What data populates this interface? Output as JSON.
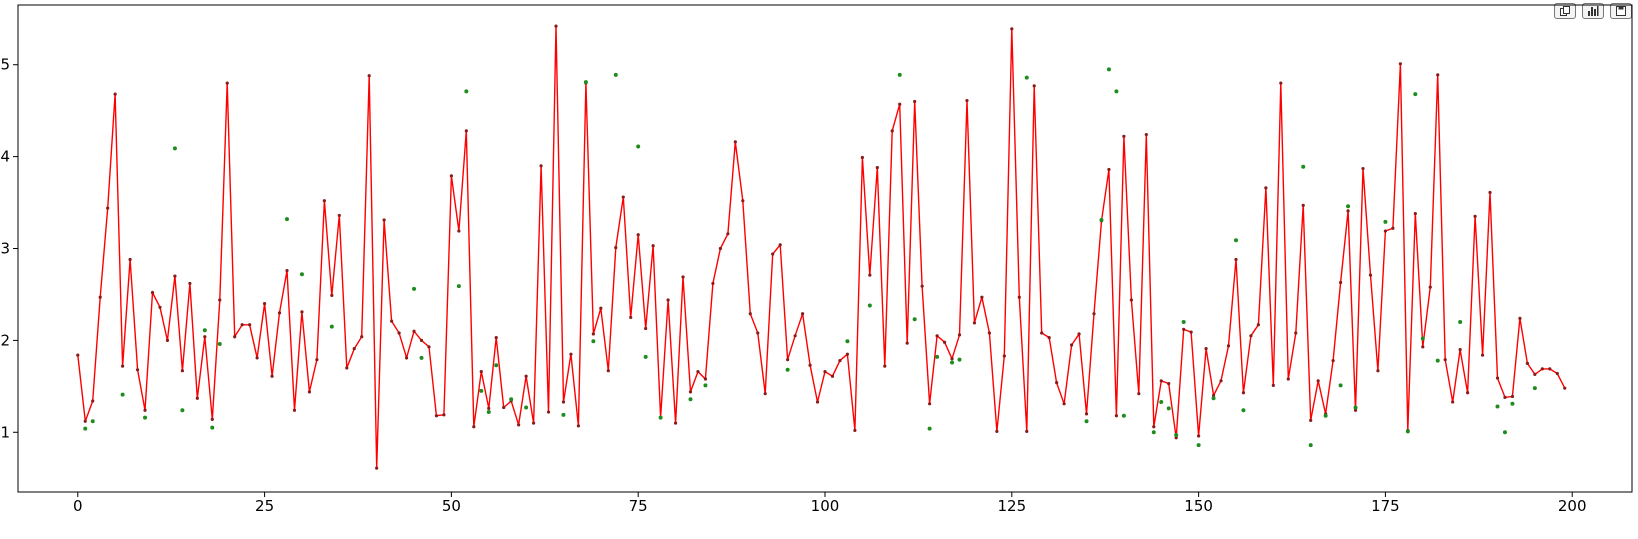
{
  "toolbar": {
    "buttons": [
      {
        "icon": "copy-icon"
      },
      {
        "icon": "bar-chart-icon"
      },
      {
        "icon": "save-icon"
      }
    ]
  },
  "chart_data": {
    "type": "line",
    "title": "",
    "xlabel": "",
    "ylabel": "",
    "xlim": [
      -8,
      208
    ],
    "ylim": [
      0.35,
      5.65
    ],
    "x_ticks": [
      0,
      25,
      50,
      75,
      100,
      125,
      150,
      175,
      200
    ],
    "y_ticks": [
      1,
      2,
      3,
      4,
      5
    ],
    "grid": false,
    "legend": "none",
    "line_color": "#ff0000",
    "line_marker_color": "#8b1a1a",
    "scatter_color": "#1e8c1e",
    "line_x": [
      0,
      1,
      2,
      3,
      4,
      5,
      6,
      7,
      8,
      9,
      10,
      11,
      12,
      13,
      14,
      15,
      16,
      17,
      18,
      19,
      20,
      21,
      22,
      23,
      24,
      25,
      26,
      27,
      28,
      29,
      30,
      31,
      32,
      33,
      34,
      35,
      36,
      37,
      38,
      39,
      40,
      41,
      42,
      43,
      44,
      45,
      46,
      47,
      48,
      49,
      50,
      51,
      52,
      53,
      54,
      55,
      56,
      57,
      58,
      59,
      60,
      61,
      62,
      63,
      64,
      65,
      66,
      67,
      68,
      69,
      70,
      71,
      72,
      73,
      74,
      75,
      76,
      77,
      78,
      79,
      80,
      81,
      82,
      83,
      84,
      85,
      86,
      87,
      88,
      89,
      90,
      91,
      92,
      93,
      94,
      95,
      96,
      97,
      98,
      99,
      100,
      101,
      102,
      103,
      104,
      105,
      106,
      107,
      108,
      109,
      110,
      111,
      112,
      113,
      114,
      115,
      116,
      117,
      118,
      119,
      120,
      121,
      122,
      123,
      124,
      125,
      126,
      127,
      128,
      129,
      130,
      131,
      132,
      133,
      134,
      135,
      136,
      137,
      138,
      139,
      140,
      141,
      142,
      143,
      144,
      145,
      146,
      147,
      148,
      149,
      150,
      151,
      152,
      153,
      154,
      155,
      156,
      157,
      158,
      159,
      160,
      161,
      162,
      163,
      164,
      165,
      166,
      167,
      168,
      169,
      170,
      171,
      172,
      173,
      174,
      175,
      176,
      177,
      178,
      179,
      180,
      181,
      182,
      183,
      184,
      185,
      186,
      187,
      188,
      189,
      190,
      191,
      192,
      193,
      194,
      195,
      196,
      197,
      198,
      199
    ],
    "line_y": [
      1.84,
      1.12,
      1.34,
      2.47,
      3.44,
      4.68,
      1.72,
      2.88,
      1.68,
      1.24,
      2.52,
      2.36,
      2.0,
      2.7,
      1.67,
      2.62,
      1.37,
      2.04,
      1.14,
      2.44,
      4.8,
      2.04,
      2.17,
      2.17,
      1.81,
      2.4,
      1.61,
      2.3,
      2.76,
      1.24,
      2.31,
      1.44,
      1.79,
      3.52,
      2.49,
      3.36,
      1.7,
      1.91,
      2.04,
      4.88,
      0.61,
      3.31,
      2.21,
      2.08,
      1.81,
      2.1,
      2.0,
      1.93,
      1.18,
      1.19,
      3.79,
      3.19,
      4.28,
      1.06,
      1.66,
      1.26,
      2.03,
      1.27,
      1.34,
      1.08,
      1.61,
      1.1,
      3.9,
      1.22,
      5.42,
      1.33,
      1.85,
      1.07,
      4.8,
      2.07,
      2.35,
      1.67,
      3.01,
      3.56,
      2.25,
      3.15,
      2.13,
      3.03,
      1.16,
      2.44,
      1.1,
      2.69,
      1.44,
      1.66,
      1.58,
      2.62,
      3.0,
      3.16,
      4.16,
      3.52,
      2.29,
      2.08,
      1.42,
      2.94,
      3.04,
      1.79,
      2.05,
      2.29,
      1.73,
      1.33,
      1.66,
      1.61,
      1.78,
      1.85,
      1.02,
      3.99,
      2.71,
      3.88,
      1.72,
      4.28,
      4.57,
      1.97,
      4.6,
      2.59,
      1.31,
      2.05,
      1.98,
      1.8,
      2.06,
      4.61,
      2.19,
      2.47,
      2.08,
      1.01,
      1.83,
      5.39,
      2.47,
      1.01,
      4.77,
      2.08,
      2.03,
      1.54,
      1.31,
      1.95,
      2.07,
      1.2,
      2.29,
      3.3,
      3.86,
      1.18,
      4.22,
      2.44,
      1.42,
      4.24,
      1.06,
      1.56,
      1.53,
      0.94,
      2.12,
      2.09,
      0.96,
      1.91,
      1.4,
      1.56,
      1.94,
      2.88,
      1.43,
      2.05,
      2.17,
      3.66,
      1.51,
      4.8,
      1.58,
      2.08,
      3.47,
      1.13,
      1.56,
      1.2,
      1.78,
      2.63,
      3.41,
      1.24,
      3.87,
      2.71,
      1.67,
      3.19,
      3.22,
      5.01,
      1.02,
      3.38,
      1.93,
      2.58,
      4.89,
      1.79,
      1.33,
      1.9,
      1.43,
      3.35,
      1.84,
      3.61,
      1.59,
      1.38,
      1.39,
      2.24,
      1.75,
      1.63,
      1.69,
      1.69,
      1.64,
      1.48
    ],
    "scatter_x": [
      1,
      2,
      6,
      9,
      13,
      14,
      17,
      18,
      19,
      28,
      30,
      34,
      45,
      46,
      51,
      52,
      54,
      55,
      56,
      58,
      60,
      65,
      68,
      69,
      72,
      75,
      76,
      78,
      82,
      84,
      95,
      103,
      106,
      110,
      112,
      114,
      115,
      117,
      118,
      127,
      135,
      137,
      138,
      139,
      140,
      144,
      145,
      146,
      147,
      148,
      150,
      152,
      155,
      156,
      164,
      165,
      167,
      169,
      170,
      171,
      175,
      178,
      179,
      180,
      182,
      185,
      190,
      191,
      192,
      195
    ],
    "scatter_y": [
      1.04,
      1.12,
      1.41,
      1.16,
      4.09,
      1.24,
      2.11,
      1.05,
      1.96,
      3.32,
      2.72,
      2.15,
      2.56,
      1.81,
      2.59,
      4.71,
      1.45,
      1.22,
      1.73,
      1.36,
      1.27,
      1.19,
      4.81,
      1.99,
      4.89,
      4.11,
      1.82,
      1.16,
      1.36,
      1.51,
      1.68,
      1.99,
      2.38,
      4.89,
      2.23,
      1.04,
      1.82,
      1.76,
      1.79,
      4.86,
      1.12,
      3.31,
      4.95,
      4.71,
      1.18,
      1.0,
      1.33,
      1.26,
      0.97,
      2.2,
      0.86,
      1.37,
      3.09,
      1.24,
      3.89,
      0.86,
      1.18,
      1.51,
      3.46,
      1.27,
      3.29,
      1.01,
      4.68,
      2.02,
      1.78,
      2.2,
      1.28,
      1.0,
      1.31,
      1.48
    ]
  }
}
